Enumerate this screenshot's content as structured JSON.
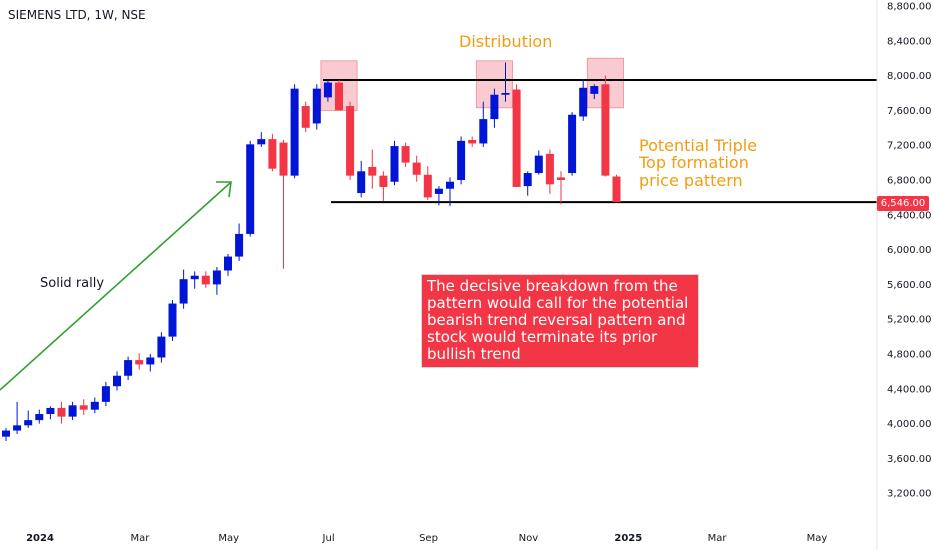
{
  "symbol_title": "SIEMENS LTD, 1W, NSE",
  "annotations": {
    "distribution": "Distribution",
    "triple_top_line1": "Potential Triple",
    "triple_top_line2": "Top formation",
    "triple_top_line3": "price pattern",
    "solid_rally": "Solid rally",
    "callout": "The decisive breakdown from the pattern would call for the potential bearish trend reversal pattern and stock would terminate its prior bullish trend"
  },
  "last_price_label": "6,546.00",
  "colors": {
    "up": "#0015d6",
    "down": "#f23645",
    "annotation_orange": "#f39c12",
    "arrow_green": "#2fa12f",
    "zone_fill": "#f7b9c2"
  },
  "chart_data": {
    "type": "candlestick",
    "y_axis": {
      "range": [
        3000,
        8900
      ],
      "ticks": [
        "3,200.00",
        "3,600.00",
        "4,000.00",
        "4,400.00",
        "4,800.00",
        "5,200.00",
        "5,600.00",
        "6,000.00",
        "6,400.00",
        "6,800.00",
        "7,200.00",
        "7,600.00",
        "8,000.00",
        "8,400.00",
        "8,800.00"
      ],
      "tick_values": [
        3200,
        3600,
        4000,
        4400,
        4800,
        5200,
        5600,
        6000,
        6400,
        6800,
        7200,
        7600,
        8000,
        8400,
        8800
      ]
    },
    "x_axis": {
      "labels": [
        {
          "text": "2024",
          "week": 0,
          "bold": true
        },
        {
          "text": "Mar",
          "week": 9,
          "bold": false
        },
        {
          "text": "May",
          "week": 17,
          "bold": false
        },
        {
          "text": "Jul",
          "week": 26,
          "bold": false
        },
        {
          "text": "Sep",
          "week": 35,
          "bold": false
        },
        {
          "text": "Nov",
          "week": 44,
          "bold": false
        },
        {
          "text": "2025",
          "week": 53,
          "bold": true
        },
        {
          "text": "Mar",
          "week": 61,
          "bold": false
        },
        {
          "text": "May",
          "week": 70,
          "bold": false
        }
      ]
    },
    "candles": [
      {
        "o": 3850,
        "h": 3950,
        "l": 3800,
        "c": 3920
      },
      {
        "o": 3920,
        "h": 4250,
        "l": 3880,
        "c": 3980
      },
      {
        "o": 3980,
        "h": 4150,
        "l": 3950,
        "c": 4040
      },
      {
        "o": 4040,
        "h": 4160,
        "l": 4000,
        "c": 4110
      },
      {
        "o": 4110,
        "h": 4200,
        "l": 4050,
        "c": 4180
      },
      {
        "o": 4180,
        "h": 4250,
        "l": 4000,
        "c": 4080
      },
      {
        "o": 4080,
        "h": 4250,
        "l": 4040,
        "c": 4210
      },
      {
        "o": 4210,
        "h": 4280,
        "l": 4100,
        "c": 4160
      },
      {
        "o": 4160,
        "h": 4300,
        "l": 4120,
        "c": 4250
      },
      {
        "o": 4250,
        "h": 4480,
        "l": 4200,
        "c": 4430
      },
      {
        "o": 4430,
        "h": 4600,
        "l": 4380,
        "c": 4550
      },
      {
        "o": 4550,
        "h": 4770,
        "l": 4500,
        "c": 4730
      },
      {
        "o": 4730,
        "h": 4810,
        "l": 4620,
        "c": 4680
      },
      {
        "o": 4680,
        "h": 4800,
        "l": 4600,
        "c": 4760
      },
      {
        "o": 4760,
        "h": 5050,
        "l": 4700,
        "c": 5000
      },
      {
        "o": 5000,
        "h": 5420,
        "l": 4950,
        "c": 5380
      },
      {
        "o": 5380,
        "h": 5770,
        "l": 5320,
        "c": 5660
      },
      {
        "o": 5660,
        "h": 5750,
        "l": 5550,
        "c": 5700
      },
      {
        "o": 5700,
        "h": 5750,
        "l": 5560,
        "c": 5600
      },
      {
        "o": 5600,
        "h": 5800,
        "l": 5480,
        "c": 5760
      },
      {
        "o": 5760,
        "h": 5950,
        "l": 5700,
        "c": 5920
      },
      {
        "o": 5920,
        "h": 6300,
        "l": 5870,
        "c": 6180
      },
      {
        "o": 6180,
        "h": 7250,
        "l": 6150,
        "c": 7210
      },
      {
        "o": 7210,
        "h": 7350,
        "l": 7180,
        "c": 7270
      },
      {
        "o": 7270,
        "h": 7330,
        "l": 6900,
        "c": 6930
      },
      {
        "o": 7230,
        "h": 7260,
        "l": 5780,
        "c": 6850
      },
      {
        "o": 6850,
        "h": 7900,
        "l": 6820,
        "c": 7850
      },
      {
        "o": 7650,
        "h": 7700,
        "l": 7350,
        "c": 7400
      },
      {
        "o": 7450,
        "h": 7900,
        "l": 7380,
        "c": 7850
      },
      {
        "o": 7750,
        "h": 7960,
        "l": 7700,
        "c": 7920
      },
      {
        "o": 7920,
        "h": 7950,
        "l": 7600,
        "c": 7600
      },
      {
        "o": 7650,
        "h": 7700,
        "l": 6800,
        "c": 6850
      },
      {
        "o": 6650,
        "h": 7020,
        "l": 6600,
        "c": 6900
      },
      {
        "o": 6950,
        "h": 7150,
        "l": 6700,
        "c": 6850
      },
      {
        "o": 6850,
        "h": 6900,
        "l": 6560,
        "c": 6720
      },
      {
        "o": 6780,
        "h": 7250,
        "l": 6740,
        "c": 7190
      },
      {
        "o": 7190,
        "h": 7230,
        "l": 6950,
        "c": 7000
      },
      {
        "o": 7000,
        "h": 7080,
        "l": 6780,
        "c": 6860
      },
      {
        "o": 6860,
        "h": 6960,
        "l": 6570,
        "c": 6600
      },
      {
        "o": 6640,
        "h": 6730,
        "l": 6510,
        "c": 6700
      },
      {
        "o": 6700,
        "h": 6830,
        "l": 6500,
        "c": 6780
      },
      {
        "o": 6800,
        "h": 7300,
        "l": 6750,
        "c": 7250
      },
      {
        "o": 7260,
        "h": 7300,
        "l": 7180,
        "c": 7220
      },
      {
        "o": 7220,
        "h": 7700,
        "l": 7180,
        "c": 7500
      },
      {
        "o": 7500,
        "h": 7850,
        "l": 7400,
        "c": 7780
      },
      {
        "o": 7780,
        "h": 8150,
        "l": 7700,
        "c": 7800
      },
      {
        "o": 7840,
        "h": 7900,
        "l": 6720,
        "c": 6720
      },
      {
        "o": 6730,
        "h": 6900,
        "l": 6620,
        "c": 6880
      },
      {
        "o": 6880,
        "h": 7140,
        "l": 6860,
        "c": 7080
      },
      {
        "o": 7100,
        "h": 7150,
        "l": 6640,
        "c": 6750
      },
      {
        "o": 6830,
        "h": 6900,
        "l": 6520,
        "c": 6800
      },
      {
        "o": 6880,
        "h": 7580,
        "l": 6850,
        "c": 7550
      },
      {
        "o": 7530,
        "h": 7960,
        "l": 7480,
        "c": 7860
      },
      {
        "o": 7790,
        "h": 7900,
        "l": 7730,
        "c": 7880
      },
      {
        "o": 7900,
        "h": 8000,
        "l": 6840,
        "c": 6850
      },
      {
        "o": 6840,
        "h": 6860,
        "l": 6546,
        "c": 6546
      }
    ],
    "horizontal_levels": [
      {
        "name": "resistance",
        "value": 7950
      },
      {
        "name": "support",
        "value": 6546
      }
    ],
    "distribution_zones": [
      {
        "from_week": 29,
        "to_week": 31,
        "low": 7600,
        "high": 8170
      },
      {
        "from_week": 43,
        "to_week": 45,
        "low": 7630,
        "high": 8170
      },
      {
        "from_week": 53,
        "to_week": 55,
        "low": 7630,
        "high": 8200
      }
    ],
    "last_price": 6546
  }
}
